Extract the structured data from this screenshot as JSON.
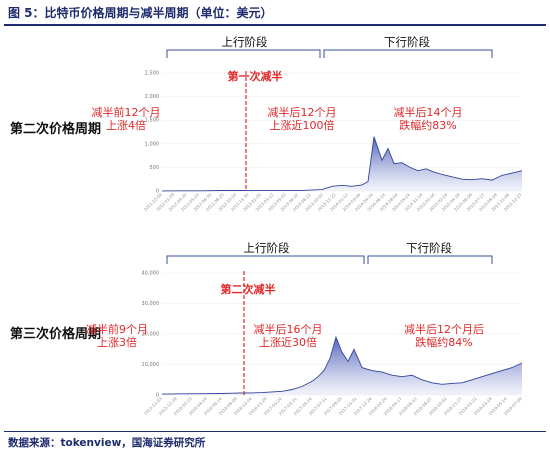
{
  "figure": {
    "title": "图 5：比特币价格周期与减半周期（单位：美元）",
    "source": "数据来源：tokenview，国海证券研究所"
  },
  "colors": {
    "line": "#33449c",
    "fill_top": "#4a5bb5",
    "fill_bottom": "#e9ecf8",
    "annotation_red": "#e0282a",
    "bracket": "#3a4fa0"
  },
  "chart_data": [
    {
      "type": "area",
      "row_label": "第二次价格周期",
      "phase_labels": [
        "上行阶段",
        "下行阶段"
      ],
      "halving_label": "第一次减半",
      "annotations": [
        "减半前12个月\n上涨4倍",
        "减半后12个月\n上涨近100倍",
        "减半后14个月\n跌幅约83%"
      ],
      "ylim": [
        0,
        2500
      ],
      "y_ticks": [
        "2,500",
        "2,000",
        "1,500",
        "1,000",
        "500",
        "0"
      ],
      "x_ticks": [
        "2011-12-09",
        "2012-01-29",
        "2012-03-20",
        "2012-05-10",
        "2012-06-30",
        "2012-08-20",
        "2012-10-10",
        "2012-11-30",
        "2013-01-20",
        "2013-03-12",
        "2013-05-02",
        "2013-06-22",
        "2013-08-12",
        "2013-10-02",
        "2013-11-22",
        "2014-01-12",
        "2014-03-04",
        "2014-04-24",
        "2014-06-14",
        "2014-08-04",
        "2014-09-24",
        "2014-11-14",
        "2015-01-04",
        "2015-02-24",
        "2015-04-16",
        "2015-06-06",
        "2015-07-27",
        "2015-09-16",
        "2015-11-06",
        "2015-12-27"
      ],
      "series": [
        {
          "x": [
            0,
            10,
            20,
            30,
            40,
            50,
            60,
            70,
            80,
            85,
            90,
            95,
            100,
            103,
            106,
            110,
            113,
            116,
            120,
            124,
            128,
            132,
            136,
            140,
            145,
            150,
            155,
            160,
            165,
            170,
            175,
            180
          ],
          "values": [
            3,
            5,
            5,
            10,
            11,
            13,
            12,
            13,
            30,
            100,
            120,
            100,
            130,
            200,
            1150,
            650,
            900,
            580,
            600,
            500,
            430,
            470,
            400,
            350,
            300,
            250,
            240,
            260,
            230,
            330,
            380,
            430
          ]
        }
      ]
    },
    {
      "type": "area",
      "row_label": "第三次价格周期",
      "phase_labels": [
        "上行阶段",
        "下行阶段"
      ],
      "halving_label": "第二次减半",
      "annotations": [
        "减半前9个月\n上涨3倍",
        "减半后16个月\n上涨近30倍",
        "减半后12个月后\n跌幅约84%"
      ],
      "ylim": [
        0,
        40000
      ],
      "y_ticks": [
        "40,000",
        "30,000",
        "20,000",
        "10,000",
        "0"
      ],
      "x_ticks": [
        "2015-11-03",
        "2015-12-29",
        "2016-02-23",
        "2016-04-19",
        "2016-06-14",
        "2016-08-09",
        "2016-10-04",
        "2016-11-29",
        "2017-01-24",
        "2017-03-21",
        "2017-05-16",
        "2017-07-11",
        "2017-09-05",
        "2017-10-31",
        "2017-12-26",
        "2018-02-20",
        "2018-04-17",
        "2018-06-12",
        "2018-08-07",
        "2018-10-02",
        "2018-11-27",
        "2019-01-22",
        "2019-03-19",
        "2019-05-14",
        "2019-07-09"
      ],
      "series": [
        {
          "x": [
            0,
            10,
            20,
            30,
            35,
            40,
            45,
            50,
            55,
            60,
            65,
            70,
            75,
            78,
            81,
            84,
            87,
            90,
            93,
            96,
            100,
            105,
            110,
            115,
            120,
            125,
            130,
            135,
            140,
            145,
            150,
            155,
            160,
            165,
            170,
            175,
            180
          ],
          "values": [
            300,
            400,
            420,
            500,
            600,
            650,
            700,
            800,
            1000,
            1200,
            1800,
            2800,
            4500,
            6000,
            8000,
            12000,
            19000,
            14000,
            11000,
            15000,
            9000,
            8000,
            7500,
            6500,
            6000,
            6500,
            5000,
            4000,
            3500,
            3800,
            4000,
            5000,
            6000,
            7000,
            8000,
            9000,
            10500
          ]
        }
      ]
    }
  ]
}
